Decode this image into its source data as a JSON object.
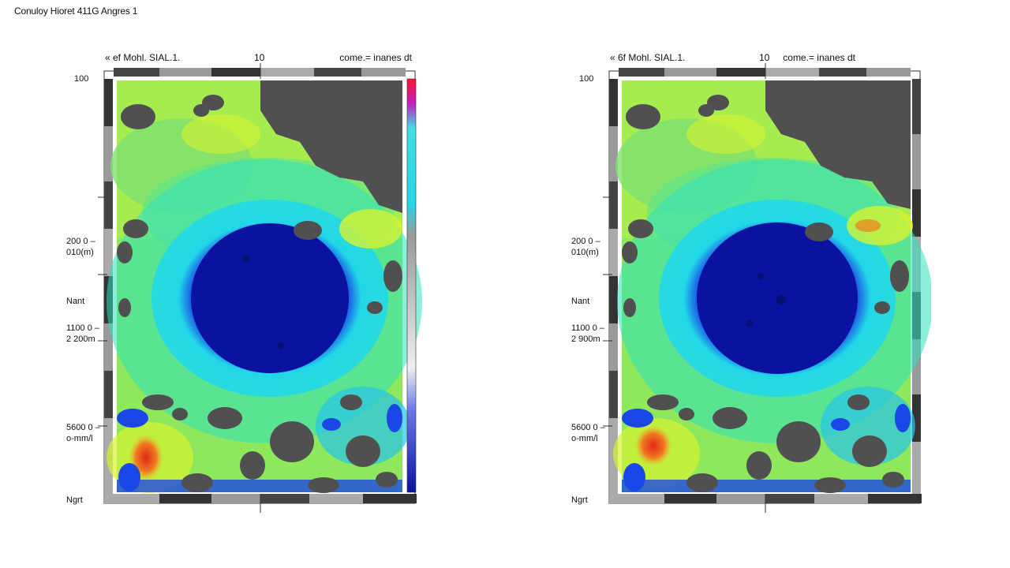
{
  "page": {
    "title": "Conuloy Hioret 411G Angres 1"
  },
  "colors": {
    "cold": "#0a1aa8",
    "mid": "#22d7e8",
    "warm": "#9cf04a",
    "hot": "#e02a1a",
    "masked": "#505050"
  },
  "chart_data": [
    {
      "type": "heatmap",
      "title": "",
      "header": {
        "left": "« ef Mohl. SIAL.1.",
        "center": "10",
        "right": "come.= inanes dt"
      },
      "y_tick_labels": [
        [
          "100"
        ],
        [
          "200 0 –",
          "010(m)"
        ],
        [
          "Nant"
        ],
        [
          "1100 0 –",
          "2 200m"
        ],
        [
          "5600 0 –",
          "o-mm/l"
        ],
        [
          "Ngrt"
        ]
      ],
      "colorbar": true,
      "colormap": [
        "#0a1aa8",
        "#1b47e6",
        "#22d7e8",
        "#7ff06a",
        "#d6f232",
        "#e02a1a"
      ],
      "features": {
        "masked_regions": [
          "upper-right",
          "scattered-bottom"
        ],
        "cold_core": "center",
        "hot_spot": "bottom-left"
      }
    },
    {
      "type": "heatmap",
      "title": "",
      "header": {
        "left": "« 6f Mohl. SIAL.1.",
        "center": "10",
        "right": "come.= inanes dt"
      },
      "y_tick_labels": [
        [
          "100"
        ],
        [
          "200 0 –",
          "010(m)"
        ],
        [
          "Nant"
        ],
        [
          "1100 0 –",
          "2 900m"
        ],
        [
          "5600 0 –",
          "o-mm/l"
        ],
        [
          "Ngrt"
        ]
      ],
      "colorbar": false,
      "colormap": [
        "#0a1aa8",
        "#1b47e6",
        "#22d7e8",
        "#7ff06a",
        "#d6f232",
        "#e02a1a"
      ],
      "features": {
        "masked_regions": [
          "upper-right",
          "scattered-bottom"
        ],
        "cold_core": "center",
        "hot_spot": "bottom-left"
      }
    }
  ]
}
